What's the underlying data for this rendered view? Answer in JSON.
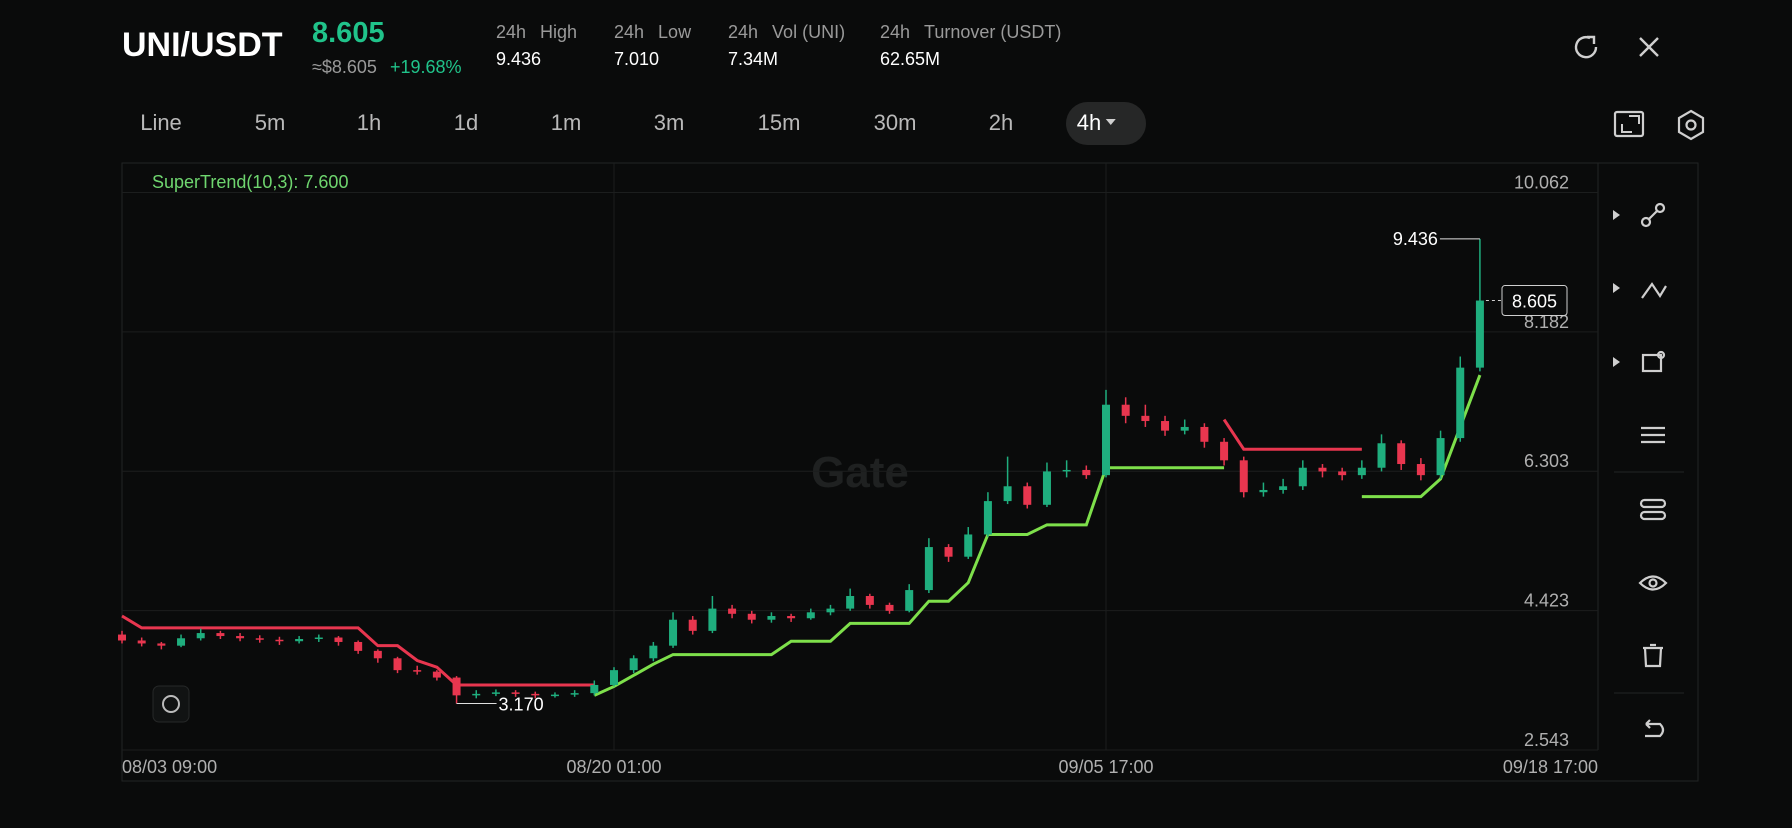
{
  "header": {
    "pair": "UNI/USDT",
    "price": "8.605",
    "usd_price": "≈$8.605",
    "change": "+19.68%",
    "stats": [
      {
        "period": "24h",
        "label": "High",
        "value": "9.436"
      },
      {
        "period": "24h",
        "label": "Low",
        "value": "7.010"
      },
      {
        "period": "24h",
        "label": "Vol (UNI)",
        "value": "7.34M"
      },
      {
        "period": "24h",
        "label": "Turnover (USDT)",
        "value": "62.65M"
      }
    ]
  },
  "timeframes": [
    {
      "label": "Line"
    },
    {
      "label": "5m"
    },
    {
      "label": "1h"
    },
    {
      "label": "1d"
    },
    {
      "label": "1m"
    },
    {
      "label": "3m"
    },
    {
      "label": "15m"
    },
    {
      "label": "30m"
    },
    {
      "label": "2h"
    },
    {
      "label": "4h",
      "active": true
    }
  ],
  "watermark": "Gate",
  "chart_data": {
    "type": "candlestick",
    "indicator_label": "SuperTrend(10,3): 7.600",
    "ylim": [
      2.543,
      10.46
    ],
    "yticks": [
      10.062,
      8.182,
      6.303,
      4.423,
      2.543
    ],
    "xlim": [
      0,
      75
    ],
    "xticks": [
      {
        "value": 0,
        "label": "08/03 09:00"
      },
      {
        "value": 25,
        "label": "08/20 01:00"
      },
      {
        "value": 50,
        "label": "09/05 17:00"
      },
      {
        "value": 75,
        "label": "09/18 17:00"
      }
    ],
    "grid": true,
    "up_color": "#1fae7e",
    "down_color": "#e8364f",
    "candles": [
      [
        4.1,
        4.15,
        3.98,
        4.02
      ],
      [
        4.02,
        4.06,
        3.94,
        3.98
      ],
      [
        3.98,
        4.0,
        3.9,
        3.95
      ],
      [
        3.95,
        4.1,
        3.93,
        4.05
      ],
      [
        4.05,
        4.18,
        4.02,
        4.12
      ],
      [
        4.12,
        4.15,
        4.04,
        4.08
      ],
      [
        4.08,
        4.12,
        4.01,
        4.05
      ],
      [
        4.05,
        4.09,
        3.99,
        4.03
      ],
      [
        4.03,
        4.07,
        3.96,
        4.01
      ],
      [
        4.01,
        4.08,
        3.98,
        4.04
      ],
      [
        4.04,
        4.1,
        4.0,
        4.06
      ],
      [
        4.06,
        4.08,
        3.95,
        4.0
      ],
      [
        4.0,
        4.02,
        3.84,
        3.88
      ],
      [
        3.88,
        3.9,
        3.72,
        3.78
      ],
      [
        3.78,
        3.8,
        3.58,
        3.62
      ],
      [
        3.62,
        3.68,
        3.56,
        3.6
      ],
      [
        3.6,
        3.62,
        3.48,
        3.52
      ],
      [
        3.52,
        3.54,
        3.17,
        3.28
      ],
      [
        3.28,
        3.35,
        3.24,
        3.3
      ],
      [
        3.3,
        3.36,
        3.27,
        3.32
      ],
      [
        3.32,
        3.35,
        3.26,
        3.3
      ],
      [
        3.3,
        3.33,
        3.24,
        3.28
      ],
      [
        3.28,
        3.32,
        3.25,
        3.29
      ],
      [
        3.29,
        3.35,
        3.26,
        3.31
      ],
      [
        3.31,
        3.48,
        3.28,
        3.42
      ],
      [
        3.42,
        3.66,
        3.4,
        3.62
      ],
      [
        3.62,
        3.82,
        3.58,
        3.78
      ],
      [
        3.78,
        4.0,
        3.74,
        3.95
      ],
      [
        3.95,
        4.4,
        3.92,
        4.3
      ],
      [
        4.3,
        4.35,
        4.1,
        4.15
      ],
      [
        4.15,
        4.62,
        4.12,
        4.45
      ],
      [
        4.45,
        4.5,
        4.32,
        4.38
      ],
      [
        4.38,
        4.42,
        4.25,
        4.3
      ],
      [
        4.3,
        4.4,
        4.26,
        4.35
      ],
      [
        4.35,
        4.38,
        4.27,
        4.32
      ],
      [
        4.32,
        4.45,
        4.3,
        4.4
      ],
      [
        4.4,
        4.5,
        4.36,
        4.45
      ],
      [
        4.45,
        4.72,
        4.42,
        4.62
      ],
      [
        4.62,
        4.65,
        4.45,
        4.5
      ],
      [
        4.5,
        4.53,
        4.38,
        4.42
      ],
      [
        4.42,
        4.78,
        4.4,
        4.7
      ],
      [
        4.7,
        5.4,
        4.66,
        5.28
      ],
      [
        5.28,
        5.32,
        5.08,
        5.15
      ],
      [
        5.15,
        5.55,
        5.12,
        5.45
      ],
      [
        5.45,
        6.02,
        5.42,
        5.9
      ],
      [
        5.9,
        6.5,
        5.86,
        6.1
      ],
      [
        6.1,
        6.15,
        5.8,
        5.85
      ],
      [
        5.85,
        6.42,
        5.82,
        6.3
      ],
      [
        6.3,
        6.45,
        6.22,
        6.32
      ],
      [
        6.32,
        6.38,
        6.2,
        6.25
      ],
      [
        6.25,
        7.4,
        6.22,
        7.2
      ],
      [
        7.2,
        7.3,
        6.95,
        7.05
      ],
      [
        7.05,
        7.2,
        6.9,
        6.98
      ],
      [
        6.98,
        7.05,
        6.78,
        6.85
      ],
      [
        6.85,
        7.0,
        6.8,
        6.9
      ],
      [
        6.9,
        6.95,
        6.62,
        6.7
      ],
      [
        6.7,
        6.75,
        6.38,
        6.45
      ],
      [
        6.45,
        6.5,
        5.95,
        6.02
      ],
      [
        6.02,
        6.15,
        5.96,
        6.05
      ],
      [
        6.05,
        6.2,
        6.0,
        6.1
      ],
      [
        6.1,
        6.45,
        6.05,
        6.35
      ],
      [
        6.35,
        6.4,
        6.22,
        6.3
      ],
      [
        6.3,
        6.35,
        6.18,
        6.25
      ],
      [
        6.25,
        6.45,
        6.2,
        6.35
      ],
      [
        6.35,
        6.8,
        6.3,
        6.68
      ],
      [
        6.68,
        6.72,
        6.32,
        6.4
      ],
      [
        6.4,
        6.48,
        6.18,
        6.25
      ],
      [
        6.25,
        6.85,
        6.2,
        6.75
      ],
      [
        6.75,
        7.85,
        6.7,
        7.7
      ],
      [
        7.7,
        9.436,
        7.65,
        8.605
      ]
    ],
    "supertrend": {
      "up": {
        "color": "#7ee04b",
        "values": [
          null,
          null,
          null,
          null,
          null,
          null,
          null,
          null,
          null,
          null,
          null,
          null,
          null,
          null,
          null,
          null,
          null,
          null,
          null,
          null,
          null,
          null,
          null,
          null,
          3.28,
          3.4,
          3.55,
          3.7,
          3.83,
          3.83,
          3.83,
          3.83,
          3.83,
          3.83,
          4.01,
          4.01,
          4.01,
          4.25,
          4.25,
          4.25,
          4.25,
          4.55,
          4.55,
          4.8,
          5.45,
          5.45,
          5.45,
          5.58,
          5.58,
          5.58,
          6.35,
          6.35,
          6.35,
          6.35,
          6.35,
          6.35,
          6.35,
          null,
          null,
          null,
          null,
          null,
          null,
          5.96,
          5.96,
          5.96,
          5.96,
          6.2,
          6.9,
          7.6
        ]
      },
      "down": {
        "color": "#e8364f",
        "values": [
          4.35,
          4.19,
          4.19,
          4.19,
          4.19,
          4.19,
          4.19,
          4.19,
          4.19,
          4.19,
          4.19,
          4.19,
          4.19,
          3.95,
          3.95,
          3.75,
          3.66,
          3.42,
          3.42,
          3.42,
          3.42,
          3.42,
          3.42,
          3.42,
          3.42,
          null,
          null,
          null,
          null,
          null,
          null,
          null,
          null,
          null,
          null,
          null,
          null,
          null,
          null,
          null,
          null,
          null,
          null,
          null,
          null,
          null,
          null,
          null,
          null,
          null,
          null,
          null,
          null,
          null,
          null,
          null,
          7.0,
          6.6,
          6.6,
          6.6,
          6.6,
          6.6,
          6.6,
          6.6,
          null,
          null,
          null,
          null,
          null,
          null
        ]
      }
    },
    "high_marker": 9.436,
    "low_marker": {
      "value": 3.17,
      "label": "3.170"
    },
    "last_price": 8.605
  }
}
